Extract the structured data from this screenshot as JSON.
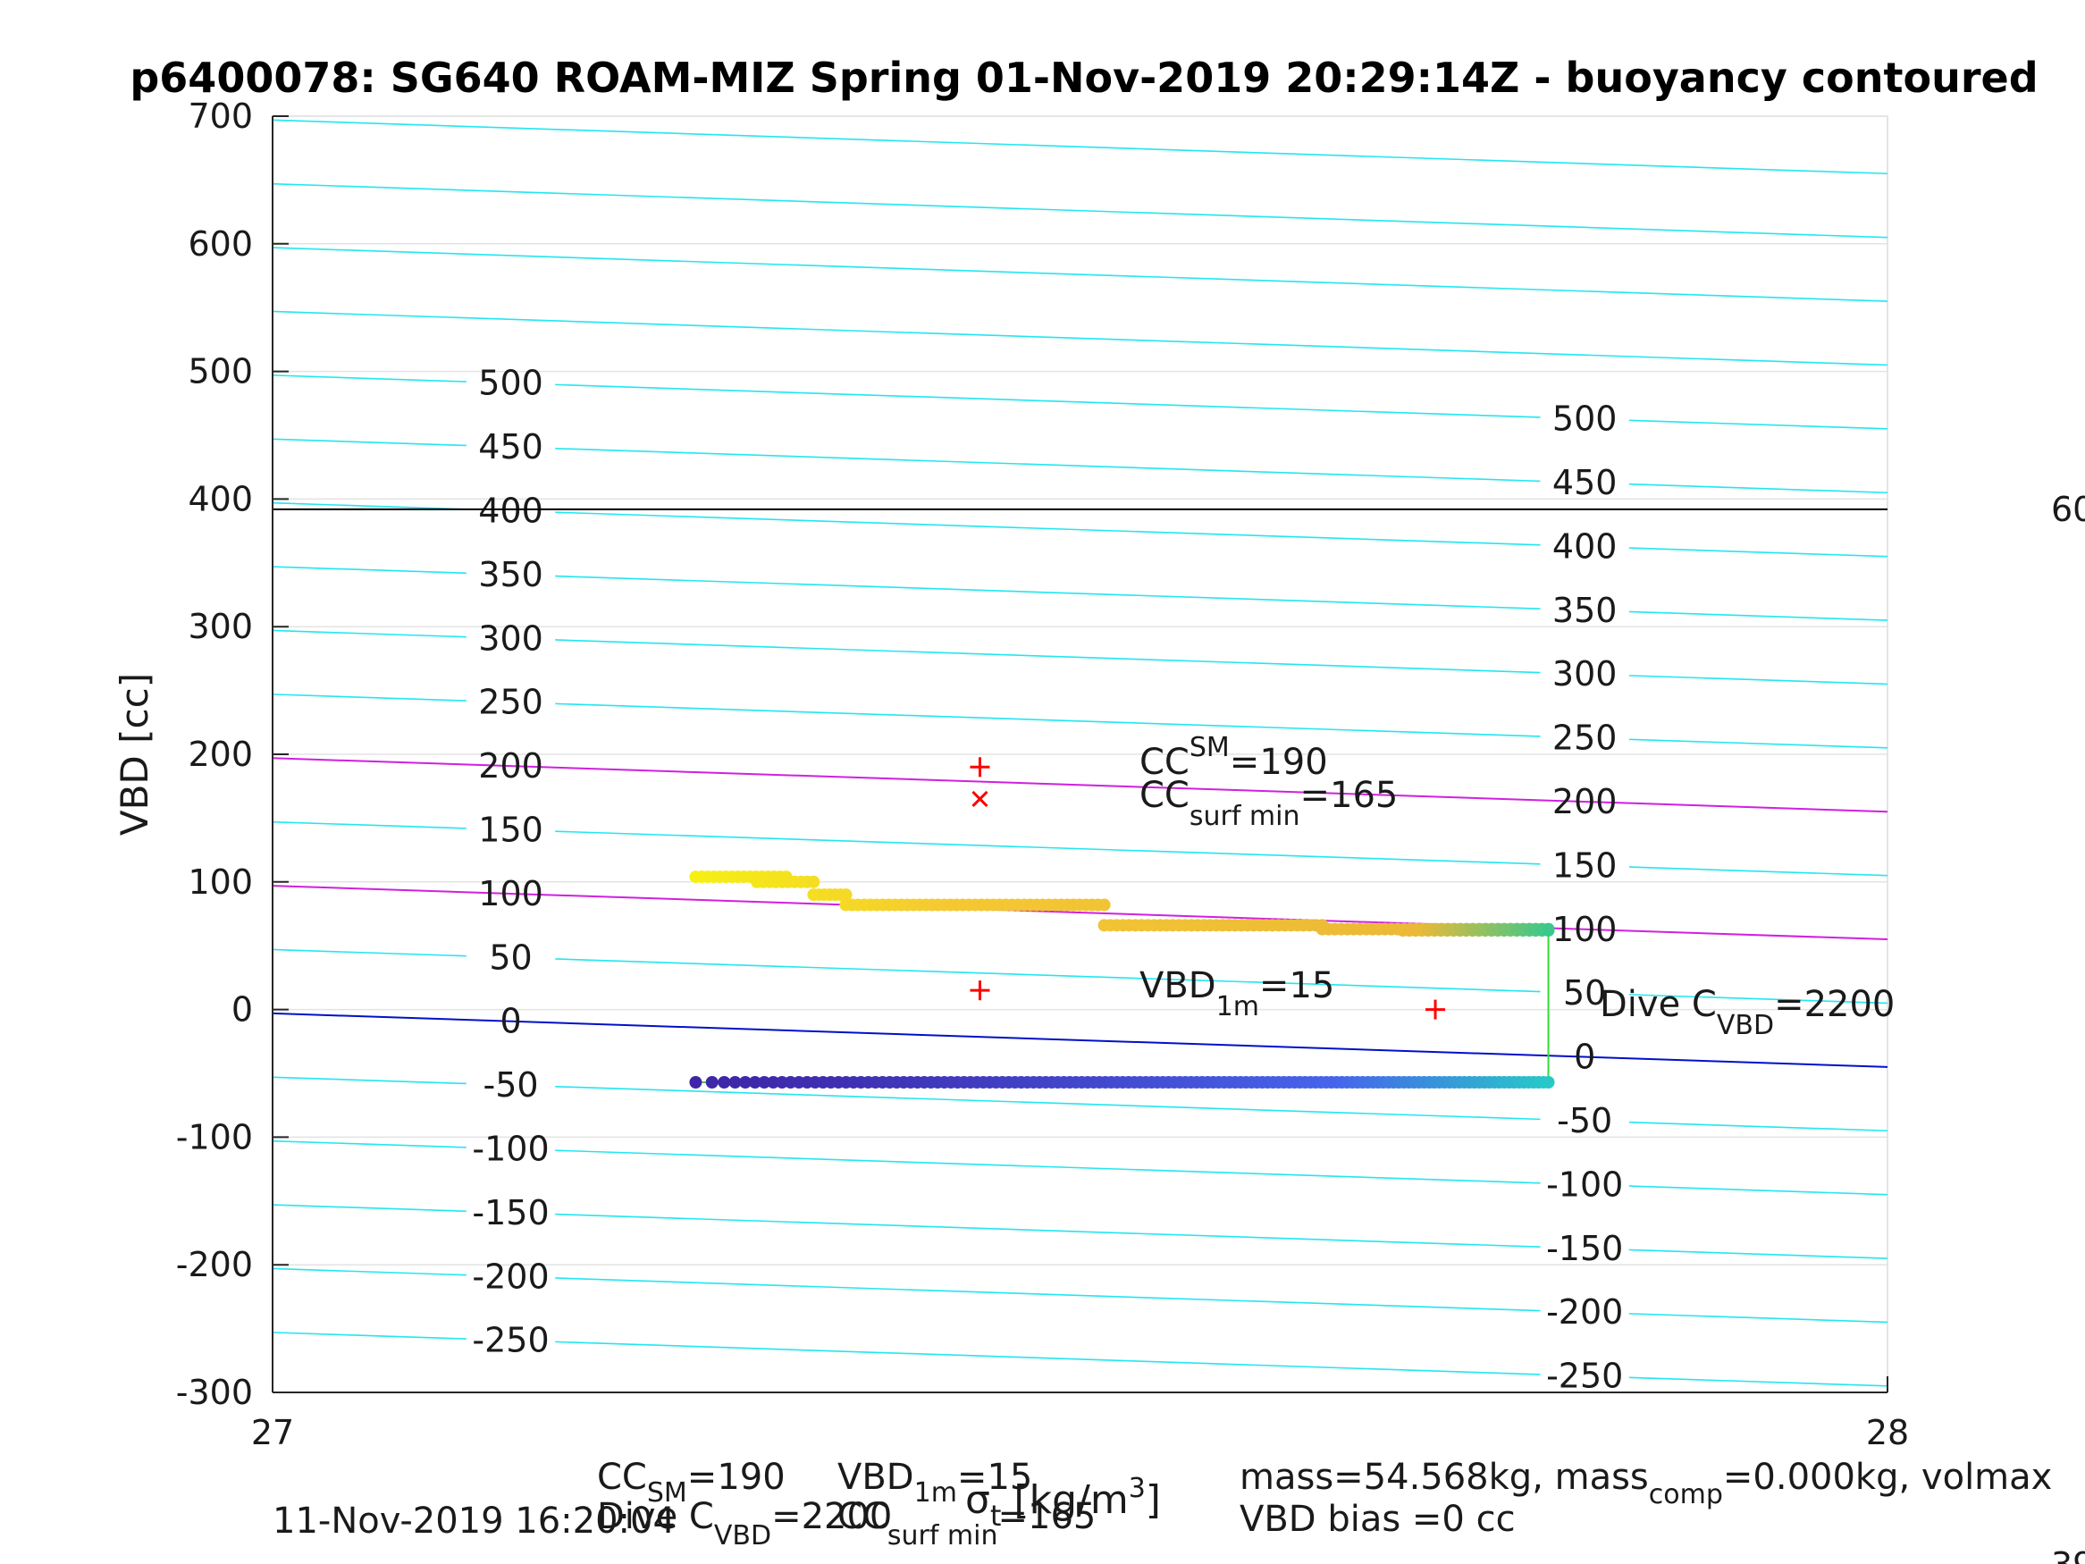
{
  "chart_data": {
    "type": "scatter",
    "title": "p6400078: SG640 ROAM-MIZ Spring 01-Nov-2019 20:29:14Z - buoyancy contoured",
    "ylabel": "VBD [cc]",
    "xlabel_parts": {
      "sym": "σ",
      "sub": "t",
      "unit_pre": " [kg/m",
      "unit_sup": "3",
      "unit_post": "]"
    },
    "xlim": [
      27,
      28
    ],
    "ylim": [
      -300,
      700
    ],
    "xticks": [
      27,
      28
    ],
    "yticks": [
      700,
      600,
      500,
      400,
      300,
      200,
      100,
      0,
      -100,
      -200,
      -300
    ],
    "grid": true,
    "contour_levels_left": [
      500,
      450,
      400,
      350,
      300,
      250,
      200,
      150,
      100,
      50,
      0,
      -50,
      -100,
      -150,
      -200,
      -250
    ],
    "contour_levels_right": [
      500,
      450,
      400,
      350,
      300,
      250,
      200,
      150,
      100,
      50,
      0,
      -50,
      -100,
      -150,
      -200,
      -250
    ],
    "contour_slope_cc_per_kgm3": -42,
    "contour_zero_at_27": -3,
    "special_contours": [
      {
        "level": 200,
        "color": "#d020e0"
      },
      {
        "level": 100,
        "color": "#d020e0"
      },
      {
        "level": 0,
        "color": "#0010c8"
      }
    ],
    "horizontal_line": {
      "y": 392,
      "color": "#000000"
    },
    "right_edge_texts": [
      "60",
      "39"
    ],
    "markers": [
      {
        "x": 27.438,
        "y": 190,
        "symbol": "+",
        "color": "#ff0000"
      },
      {
        "x": 27.438,
        "y": 165,
        "symbol": "x",
        "color": "#ff0000"
      },
      {
        "x": 27.438,
        "y": 15,
        "symbol": "+",
        "color": "#ff0000"
      },
      {
        "x": 27.72,
        "y": 0,
        "symbol": "+",
        "color": "#ff0000"
      }
    ],
    "ascent_segments": [
      {
        "x0": 27.262,
        "x1": 27.318,
        "y": 104
      },
      {
        "x0": 27.3,
        "x1": 27.335,
        "y": 100
      },
      {
        "x0": 27.335,
        "x1": 27.355,
        "y": 90
      },
      {
        "x0": 27.355,
        "x1": 27.515,
        "y": 82
      },
      {
        "x0": 27.515,
        "x1": 27.65,
        "y": 66
      },
      {
        "x0": 27.65,
        "x1": 27.79,
        "y": 63
      },
      {
        "x0": 27.7,
        "x1": 27.79,
        "y": 62
      }
    ],
    "descent_segment": {
      "x0": 27.262,
      "x1": 27.79,
      "y": -57
    },
    "vertical_link": {
      "x": 27.79,
      "y0": -57,
      "y1": 62,
      "color": "#33dd33"
    }
  },
  "annotations": {
    "cc_sm": {
      "base": "CC",
      "sub": "SM",
      "value": "=190"
    },
    "cc_surf_min": {
      "base": "CC",
      "sub": "surf min",
      "value": "=165"
    },
    "vbd_1m": {
      "base": "VBD",
      "sub": "1m",
      "value": "=15"
    },
    "dive_c_vbd": {
      "base": "Dive C",
      "sub": "VBD",
      "value": "=2200"
    }
  },
  "footer": {
    "date": "11-Nov-2019 16:20:04",
    "cc_sm": {
      "base": "CC",
      "sub": "SM",
      "value": "=190"
    },
    "dive_c_vbd": {
      "base": "Dive C",
      "sub": "VBD",
      "value": "=2200"
    },
    "vbd_1m": {
      "base": "VBD",
      "sub": "1m",
      "value": "=15"
    },
    "cc_surf_min": {
      "base": "CC",
      "sub": "surf min",
      "value": "=165"
    },
    "mass_line": {
      "mass": "mass=54.568kg, mass",
      "sub": "comp",
      "rest": "=0.000kg, volmax"
    },
    "bias": "VBD bias =0 cc"
  }
}
